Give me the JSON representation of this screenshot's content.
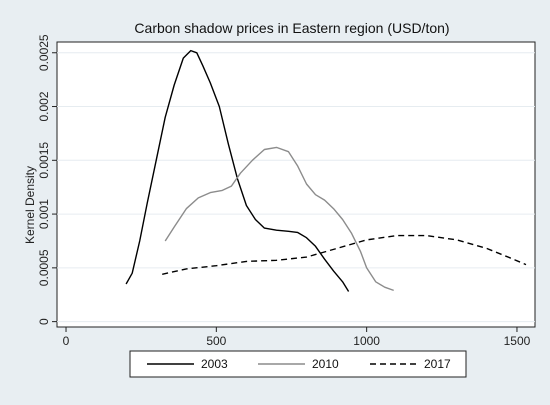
{
  "chart_data": {
    "type": "line",
    "title": "Carbon shadow prices in Eastern region (USD/ton)",
    "xlabel": "",
    "ylabel": "Kernel Density",
    "xlim": [
      -30,
      1560
    ],
    "ylim": [
      -5e-05,
      0.0026
    ],
    "xticks": [
      0,
      500,
      1000,
      1500
    ],
    "xtick_labels": [
      "0",
      "500",
      "1000",
      "1500"
    ],
    "yticks": [
      0,
      0.0005,
      0.001,
      0.0015,
      0.002,
      0.0025
    ],
    "ytick_labels": [
      "0",
      "0.0005",
      "0.001",
      "0.0015",
      "0.002",
      "0.0025"
    ],
    "grid": "horizontal",
    "legend_position": "bottom",
    "series": [
      {
        "name": "2003",
        "color": "#000000",
        "dash": "solid",
        "x": [
          200,
          220,
          245,
          270,
          300,
          330,
          360,
          390,
          415,
          435,
          455,
          480,
          510,
          540,
          570,
          600,
          630,
          660,
          700,
          740,
          770,
          800,
          830,
          860,
          890,
          920,
          940
        ],
        "y": [
          0.00035,
          0.00045,
          0.00075,
          0.0011,
          0.0015,
          0.0019,
          0.0022,
          0.00245,
          0.00252,
          0.0025,
          0.00238,
          0.00222,
          0.002,
          0.00165,
          0.00133,
          0.00108,
          0.00095,
          0.00087,
          0.00085,
          0.00084,
          0.00083,
          0.00078,
          0.0007,
          0.00058,
          0.00047,
          0.00037,
          0.00028
        ]
      },
      {
        "name": "2010",
        "color": "#8c8c8c",
        "dash": "solid",
        "x": [
          330,
          360,
          400,
          440,
          480,
          520,
          550,
          580,
          620,
          660,
          700,
          740,
          770,
          800,
          830,
          860,
          890,
          920,
          950,
          980,
          1000,
          1030,
          1060,
          1090
        ],
        "y": [
          0.00075,
          0.00088,
          0.00105,
          0.00115,
          0.0012,
          0.00122,
          0.00126,
          0.00138,
          0.0015,
          0.0016,
          0.00162,
          0.00158,
          0.00145,
          0.00128,
          0.00118,
          0.00113,
          0.00105,
          0.00095,
          0.00082,
          0.00065,
          0.0005,
          0.00037,
          0.00032,
          0.00029
        ]
      },
      {
        "name": "2017",
        "color": "#000000",
        "dash": "dashed",
        "x": [
          320,
          400,
          500,
          600,
          700,
          800,
          900,
          1000,
          1100,
          1200,
          1300,
          1400,
          1480,
          1530
        ],
        "y": [
          0.00044,
          0.00049,
          0.00052,
          0.00056,
          0.00057,
          0.0006,
          0.00068,
          0.00076,
          0.0008,
          0.0008,
          0.00076,
          0.00068,
          0.00059,
          0.00053
        ]
      }
    ]
  }
}
